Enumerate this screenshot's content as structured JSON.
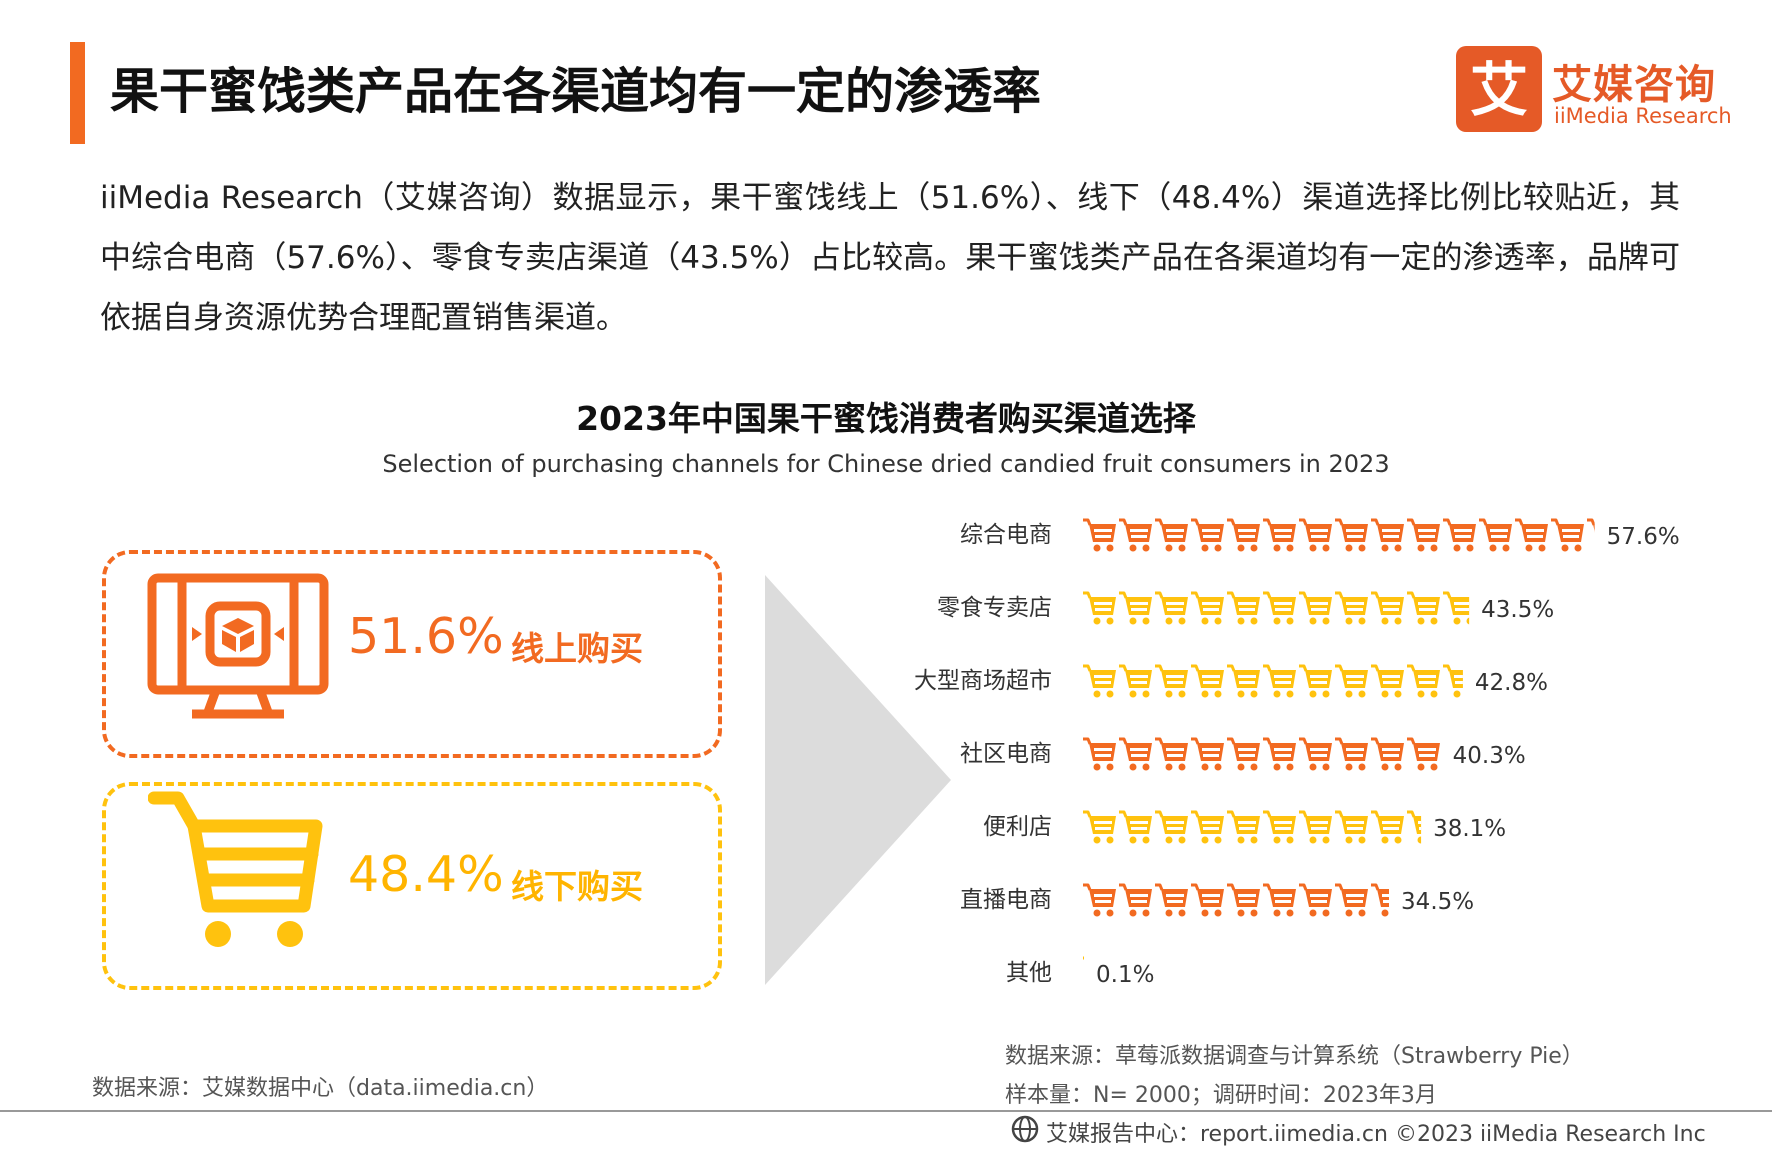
{
  "header": {
    "title": "果干蜜饯类产品在各渠道均有一定的渗透率",
    "logo_cn": "艾媒咨询",
    "logo_en": "iiMedia Research",
    "logo_mark": "艾"
  },
  "summary": "iiMedia Research（艾媒咨询）数据显示，果干蜜饯线上（51.6%）、线下（48.4%）渠道选择比例比较贴近，其中综合电商（57.6%）、零食专卖店渠道（43.5%）占比较高。果干蜜饯类产品在各渠道均有一定的渗透率，品牌可依据自身资源优势合理配置销售渠道。",
  "split": {
    "online": {
      "value": "51.6%",
      "label": "线上购买",
      "icon": "monitor-icon"
    },
    "offline": {
      "value": "48.4%",
      "label": "线下购买",
      "icon": "shopping-cart-icon"
    }
  },
  "colors": {
    "accent": "#F26A21",
    "yellow": "#FFC20E",
    "arrow": "#DCDCDC"
  },
  "chart_data": {
    "type": "bar",
    "orientation": "horizontal",
    "title": "2023年中国果干蜜饯消费者购买渠道选择",
    "subtitle": "Selection of purchasing channels for Chinese dried candied fruit consumers in 2023",
    "unit": "%",
    "mark": "shopping-cart-pictogram",
    "categories": [
      "综合电商",
      "零食专卖店",
      "大型商场超市",
      "社区电商",
      "便利店",
      "直播电商",
      "其他"
    ],
    "values": [
      57.6,
      43.5,
      42.8,
      40.3,
      38.1,
      34.5,
      0.1
    ],
    "value_labels": [
      "57.6%",
      "43.5%",
      "42.8%",
      "40.3%",
      "38.1%",
      "34.5%",
      "0.1%"
    ],
    "bar_colors": [
      "#F26A21",
      "#FFC20E",
      "#FFC20E",
      "#F26A21",
      "#FFC20E",
      "#F26A21",
      "#FFC20E"
    ]
  },
  "footer": {
    "source_left": "数据来源：艾媒数据中心（data.iimedia.cn）",
    "source_right": "数据来源：草莓派数据调查与计算系统（Strawberry Pie）",
    "sample": "样本量：N= 2000；调研时间：2023年3月",
    "report": "艾媒报告中心：report.iimedia.cn    ©2023  iiMedia Research Inc"
  }
}
